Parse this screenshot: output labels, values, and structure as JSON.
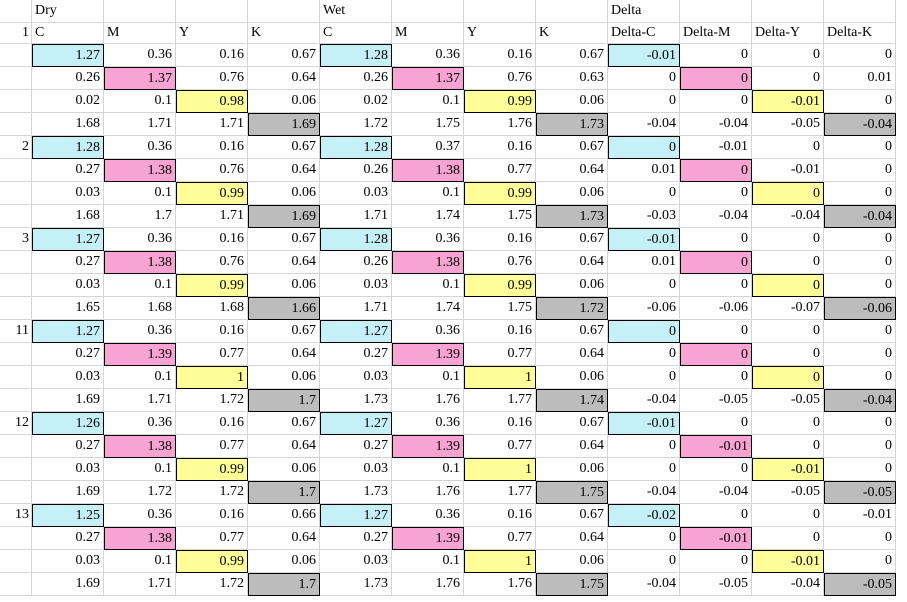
{
  "sheet": {
    "group_headers": [
      "Dry",
      "Wet",
      "Delta"
    ],
    "column_headers": [
      "C",
      "M",
      "Y",
      "K",
      "C",
      "M",
      "Y",
      "K",
      "Delta-C",
      "Delta-M",
      "Delta-Y",
      "Delta-K"
    ],
    "highlight_colors": {
      "C": "#c6f0f7",
      "M": "#f7a3d3",
      "Y": "#fdfd9a",
      "K": "#bcbcbc"
    },
    "row_labels": [
      "1",
      "",
      "",
      "",
      "2",
      "",
      "",
      "",
      "3",
      "",
      "",
      "",
      "11",
      "",
      "",
      "",
      "12",
      "",
      "",
      "",
      "13",
      "",
      "",
      ""
    ],
    "rows": [
      [
        "1.27",
        "0.36",
        "0.16",
        "0.67",
        "1.28",
        "0.36",
        "0.16",
        "0.67",
        "-0.01",
        "0",
        "0",
        "0"
      ],
      [
        "0.26",
        "1.37",
        "0.76",
        "0.64",
        "0.26",
        "1.37",
        "0.76",
        "0.63",
        "0",
        "0",
        "0",
        "0.01"
      ],
      [
        "0.02",
        "0.1",
        "0.98",
        "0.06",
        "0.02",
        "0.1",
        "0.99",
        "0.06",
        "0",
        "0",
        "-0.01",
        "0"
      ],
      [
        "1.68",
        "1.71",
        "1.71",
        "1.69",
        "1.72",
        "1.75",
        "1.76",
        "1.73",
        "-0.04",
        "-0.04",
        "-0.05",
        "-0.04"
      ],
      [
        "1.28",
        "0.36",
        "0.16",
        "0.67",
        "1.28",
        "0.37",
        "0.16",
        "0.67",
        "0",
        "-0.01",
        "0",
        "0"
      ],
      [
        "0.27",
        "1.38",
        "0.76",
        "0.64",
        "0.26",
        "1.38",
        "0.77",
        "0.64",
        "0.01",
        "0",
        "-0.01",
        "0"
      ],
      [
        "0.03",
        "0.1",
        "0.99",
        "0.06",
        "0.03",
        "0.1",
        "0.99",
        "0.06",
        "0",
        "0",
        "0",
        "0"
      ],
      [
        "1.68",
        "1.7",
        "1.71",
        "1.69",
        "1.71",
        "1.74",
        "1.75",
        "1.73",
        "-0.03",
        "-0.04",
        "-0.04",
        "-0.04"
      ],
      [
        "1.27",
        "0.36",
        "0.16",
        "0.67",
        "1.28",
        "0.36",
        "0.16",
        "0.67",
        "-0.01",
        "0",
        "0",
        "0"
      ],
      [
        "0.27",
        "1.38",
        "0.76",
        "0.64",
        "0.26",
        "1.38",
        "0.76",
        "0.64",
        "0.01",
        "0",
        "0",
        "0"
      ],
      [
        "0.03",
        "0.1",
        "0.99",
        "0.06",
        "0.03",
        "0.1",
        "0.99",
        "0.06",
        "0",
        "0",
        "0",
        "0"
      ],
      [
        "1.65",
        "1.68",
        "1.68",
        "1.66",
        "1.71",
        "1.74",
        "1.75",
        "1.72",
        "-0.06",
        "-0.06",
        "-0.07",
        "-0.06"
      ],
      [
        "1.27",
        "0.36",
        "0.16",
        "0.67",
        "1.27",
        "0.36",
        "0.16",
        "0.67",
        "0",
        "0",
        "0",
        "0"
      ],
      [
        "0.27",
        "1.39",
        "0.77",
        "0.64",
        "0.27",
        "1.39",
        "0.77",
        "0.64",
        "0",
        "0",
        "0",
        "0"
      ],
      [
        "0.03",
        "0.1",
        "1",
        "0.06",
        "0.03",
        "0.1",
        "1",
        "0.06",
        "0",
        "0",
        "0",
        "0"
      ],
      [
        "1.69",
        "1.71",
        "1.72",
        "1.7",
        "1.73",
        "1.76",
        "1.77",
        "1.74",
        "-0.04",
        "-0.05",
        "-0.05",
        "-0.04"
      ],
      [
        "1.26",
        "0.36",
        "0.16",
        "0.67",
        "1.27",
        "0.36",
        "0.16",
        "0.67",
        "-0.01",
        "0",
        "0",
        "0"
      ],
      [
        "0.27",
        "1.38",
        "0.77",
        "0.64",
        "0.27",
        "1.39",
        "0.77",
        "0.64",
        "0",
        "-0.01",
        "0",
        "0"
      ],
      [
        "0.03",
        "0.1",
        "0.99",
        "0.06",
        "0.03",
        "0.1",
        "1",
        "0.06",
        "0",
        "0",
        "-0.01",
        "0"
      ],
      [
        "1.69",
        "1.72",
        "1.72",
        "1.7",
        "1.73",
        "1.76",
        "1.77",
        "1.75",
        "-0.04",
        "-0.04",
        "-0.05",
        "-0.05"
      ],
      [
        "1.25",
        "0.36",
        "0.16",
        "0.66",
        "1.27",
        "0.36",
        "0.16",
        "0.67",
        "-0.02",
        "0",
        "0",
        "-0.01"
      ],
      [
        "0.27",
        "1.38",
        "0.77",
        "0.64",
        "0.27",
        "1.39",
        "0.77",
        "0.64",
        "0",
        "-0.01",
        "0",
        "0"
      ],
      [
        "0.03",
        "0.1",
        "0.99",
        "0.06",
        "0.03",
        "0.1",
        "1",
        "0.06",
        "0",
        "0",
        "-0.01",
        "0"
      ],
      [
        "1.69",
        "1.71",
        "1.72",
        "1.7",
        "1.73",
        "1.76",
        "1.76",
        "1.75",
        "-0.04",
        "-0.05",
        "-0.04",
        "-0.05"
      ]
    ]
  }
}
